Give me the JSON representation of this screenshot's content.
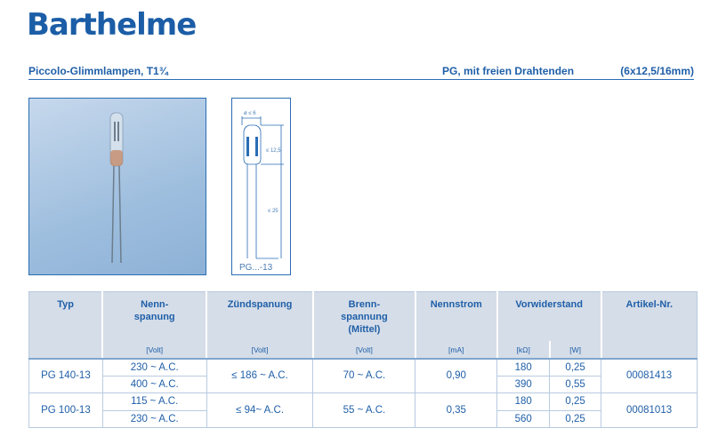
{
  "logo": "Barthelme",
  "header": {
    "left": "Piccolo-Glimmlampen, T1¾",
    "middle": "PG, mit freien Drahtenden",
    "right": "(6x12,5/16mm)"
  },
  "drawing": {
    "diameter": "ø ≤ 6",
    "height": "≤ 12,5",
    "lead": "≤ 25",
    "label": "PG...-13"
  },
  "table": {
    "headers": [
      "Typ",
      "Nenn-\nspanung",
      "Zündspanung",
      "Brenn-\nspannung\n(Mittel)",
      "Nennstrom",
      "Vorwiderstand",
      "Artikel-Nr."
    ],
    "units": [
      "[Volt]",
      "[Volt]",
      "[Volt]",
      "[mA]",
      "[kΩ]",
      "[W]"
    ],
    "rows": [
      {
        "typ": "PG 140-13",
        "nenn": [
          "230 ~ A.C.",
          "400 ~ A.C."
        ],
        "zuend": "≤ 186 ~ A.C.",
        "brenn": "70 ~ A.C.",
        "strom": "0,90",
        "kohm": [
          "180",
          "390"
        ],
        "watt": [
          "0,25",
          "0,55"
        ],
        "art": "00081413"
      },
      {
        "typ": "PG 100-13",
        "nenn": [
          "115 ~ A.C.",
          "230 ~ A.C."
        ],
        "zuend": "≤ 94~ A.C.",
        "brenn": "55 ~ A.C.",
        "strom": "0,35",
        "kohm": [
          "180",
          "560"
        ],
        "watt": [
          "0,25",
          "0,25"
        ],
        "art": "00081013"
      }
    ]
  }
}
